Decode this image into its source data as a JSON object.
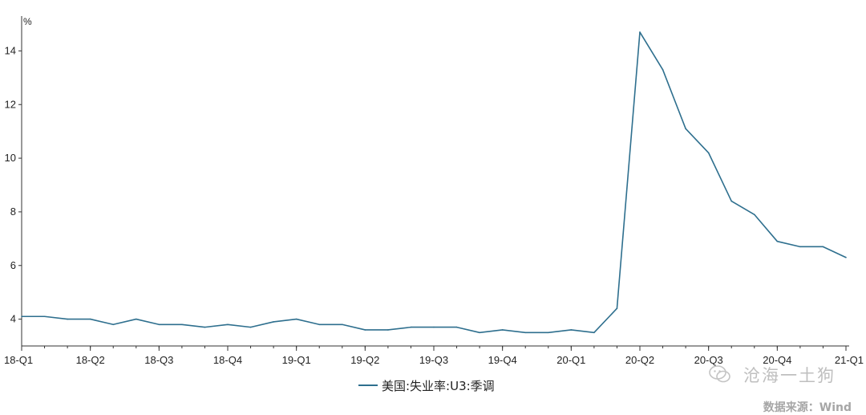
{
  "chart_data": {
    "type": "line",
    "unit": "%",
    "ylim": [
      3,
      15
    ],
    "yticks": [
      4,
      6,
      8,
      10,
      12,
      14
    ],
    "x_labels": [
      "18-Q1",
      "18-Q2",
      "18-Q3",
      "18-Q4",
      "19-Q1",
      "19-Q2",
      "19-Q3",
      "19-Q4",
      "20-Q1",
      "20-Q2",
      "20-Q3",
      "20-Q4",
      "21-Q1"
    ],
    "x_label_positions": [
      0,
      3,
      6,
      9,
      12,
      15,
      18,
      21,
      24,
      27,
      30,
      33,
      36
    ],
    "series": [
      {
        "name": "美国:失业率:U3:季调",
        "color": "#2e6f8e",
        "values": [
          4.1,
          4.1,
          4.0,
          4.0,
          3.8,
          4.0,
          3.8,
          3.8,
          3.7,
          3.8,
          3.7,
          3.9,
          4.0,
          3.8,
          3.8,
          3.6,
          3.6,
          3.7,
          3.7,
          3.7,
          3.5,
          3.6,
          3.5,
          3.5,
          3.6,
          3.5,
          4.4,
          14.7,
          13.3,
          11.1,
          10.2,
          8.4,
          7.9,
          6.9,
          6.7,
          6.7,
          6.3
        ]
      }
    ]
  },
  "watermark": "沧海一土狗",
  "source": "数据来源：Wind"
}
